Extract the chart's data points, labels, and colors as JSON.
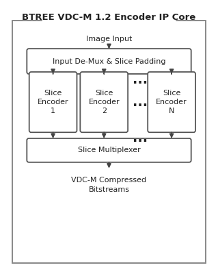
{
  "title": "BTREE VDC-M 1.2 Encoder IP Core",
  "title_fontsize": 9.5,
  "bg_color": "#ffffff",
  "border_color": "#888888",
  "box_edge_color": "#555555",
  "box_face_color": "#ffffff",
  "text_color": "#222222",
  "arrow_color": "#444444",
  "image_input_text": "Image Input",
  "demux_label": "Input De-Mux & Slice Padding",
  "mux_label": "Slice Multiplexer",
  "encoder_labels": [
    "Slice\nEncoder\n1",
    "Slice\nEncoder\n2",
    "Slice\nEncoder\nN"
  ],
  "output_text": "VDC-M Compressed\nBitstreams",
  "label_fontsize": 8.0,
  "dots_fontsize": 14
}
